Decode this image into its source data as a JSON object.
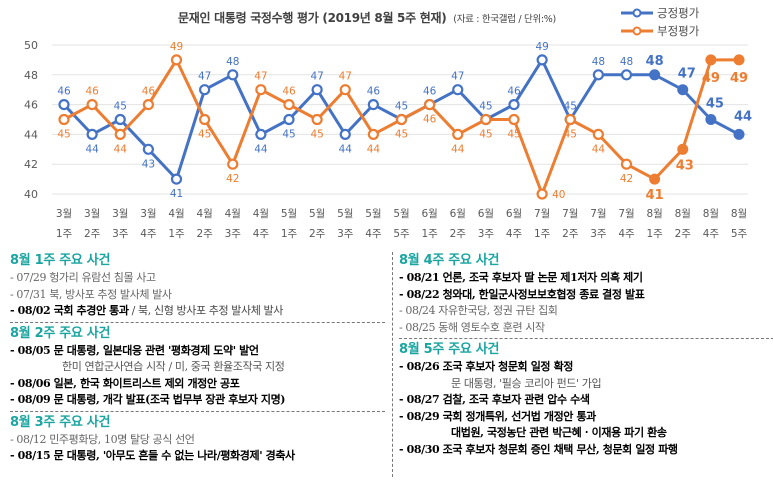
{
  "chart_data": {
    "type": "line",
    "title": "문재인 대통령 국정수행 평가 (2019년 8월 5주 현재)",
    "subtitle": "(자료 : 한국갤럽 / 단위:%)",
    "xlabel": "",
    "ylabel": "",
    "ylim": [
      40,
      50
    ],
    "yticks": [
      40,
      42,
      44,
      46,
      48,
      50
    ],
    "grid": true,
    "legend": "top-right",
    "categories": [
      [
        "3월",
        "1주"
      ],
      [
        "3월",
        "2주"
      ],
      [
        "3월",
        "3주"
      ],
      [
        "3월",
        "4주"
      ],
      [
        "4월",
        "1주"
      ],
      [
        "4월",
        "2주"
      ],
      [
        "4월",
        "3주"
      ],
      [
        "4월",
        "4주"
      ],
      [
        "5월",
        "1주"
      ],
      [
        "5월",
        "2주"
      ],
      [
        "5월",
        "3주"
      ],
      [
        "5월",
        "4주"
      ],
      [
        "5월",
        "5주"
      ],
      [
        "6월",
        "1주"
      ],
      [
        "6월",
        "2주"
      ],
      [
        "6월",
        "3주"
      ],
      [
        "6월",
        "4주"
      ],
      [
        "7월",
        "1주"
      ],
      [
        "7월",
        "2주"
      ],
      [
        "7월",
        "3주"
      ],
      [
        "7월",
        "4주"
      ],
      [
        "8월",
        "1주"
      ],
      [
        "8월",
        "2주"
      ],
      [
        "8월",
        "4주"
      ],
      [
        "8월",
        "5주"
      ]
    ],
    "series": [
      {
        "name": "긍정평가",
        "color": "#4472c4",
        "values": [
          46,
          44,
          45,
          43,
          41,
          47,
          48,
          44,
          45,
          47,
          44,
          46,
          45,
          46,
          47,
          45,
          46,
          49,
          45,
          48,
          48,
          48,
          47,
          45,
          44
        ],
        "label_pos": [
          "above",
          "below",
          "above",
          "below",
          "below",
          "above",
          "above",
          "below",
          "below",
          "above",
          "below",
          "above",
          "above",
          "above",
          "above",
          "above",
          "above",
          "above",
          "above",
          "above",
          "above",
          "above",
          "above",
          "above",
          "above"
        ],
        "highlight_from": 21
      },
      {
        "name": "부정평가",
        "color": "#ed7d31",
        "values": [
          45,
          46,
          44,
          46,
          49,
          45,
          42,
          47,
          46,
          45,
          47,
          44,
          45,
          46,
          44,
          45,
          45,
          40,
          45,
          44,
          42,
          41,
          43,
          49,
          49
        ],
        "label_pos": [
          "below",
          "above",
          "below",
          "above",
          "above",
          "below",
          "below",
          "above",
          "above",
          "below",
          "above",
          "below",
          "below",
          "below",
          "below",
          "below",
          "below",
          "right",
          "below",
          "below",
          "below",
          "below",
          "below",
          "below",
          "below"
        ],
        "highlight_from": 21
      }
    ]
  },
  "events": {
    "left": [
      {
        "title": "8월 1주 주요 사건",
        "items": [
          {
            "style": "light",
            "text": "- 07/29 헝가리 유람선 침몰 사고"
          },
          {
            "style": "light",
            "text": "- 07/31 북, 방사포 추정 발사체 발사"
          },
          {
            "style": "mixed",
            "bold": "- 08/02 국회 추경안 통과",
            "rest": " / 북, 신형 방사포 추정 발사체 발사"
          }
        ]
      },
      {
        "title": "8월 2주 주요 사건",
        "items": [
          {
            "style": "bold",
            "text": "- 08/05 문 대통령, 일본대응 관련 '평화경제 도약' 발언"
          },
          {
            "style": "cont-light",
            "text": "한미 연합군사연습 시작 / 미, 중국 환율조작국 지정"
          },
          {
            "style": "bold",
            "text": "- 08/06 일본, 한국 화이트리스트 제외 개정안 공포"
          },
          {
            "style": "bold",
            "text": "- 08/09 문 대통령, 개각 발표(조국 법무부 장관 후보자 지명)"
          }
        ]
      },
      {
        "title": "8월 3주 주요 사건",
        "items": [
          {
            "style": "light",
            "text": "- 08/12 민주평화당, 10명 탈당 공식 선언"
          },
          {
            "style": "bold",
            "text": "- 08/15 문 대통령, '아무도 흔들 수 없는 나라/평화경제' 경축사"
          }
        ]
      }
    ],
    "right": [
      {
        "title": "8월 4주 주요 사건",
        "items": [
          {
            "style": "bold",
            "text": "- 08/21 언론, 조국 후보자 딸 논문 제1저자 의혹 제기"
          },
          {
            "style": "bold",
            "text": "- 08/22 청와대, 한일군사정보보호협정 종료 결정 발표"
          },
          {
            "style": "light",
            "text": "- 08/24 자유한국당, 정권 규탄 집회"
          },
          {
            "style": "light",
            "text": "- 08/25 동해 영토수호 훈련 시작"
          }
        ]
      },
      {
        "title": "8월 5주 주요 사건",
        "items": [
          {
            "style": "bold",
            "text": "- 08/26 조국 후보자 청문회 일정 확정"
          },
          {
            "style": "cont-light",
            "text": "문 대통령, '필승 코리아 펀드' 가입"
          },
          {
            "style": "bold",
            "text": "- 08/27 검찰, 조국 후보자 관련 압수 수색"
          },
          {
            "style": "bold",
            "text": "- 08/29 국회 정개특위, 선거법 개정안 통과"
          },
          {
            "style": "cont-bold",
            "text": "대법원, 국정농단 관련 박근혜 · 이재용 파기 환송"
          },
          {
            "style": "bold",
            "text": "- 08/30 조국 후보자 청문회 증인 채택 무산, 청문회 일정 파행"
          }
        ]
      }
    ]
  }
}
